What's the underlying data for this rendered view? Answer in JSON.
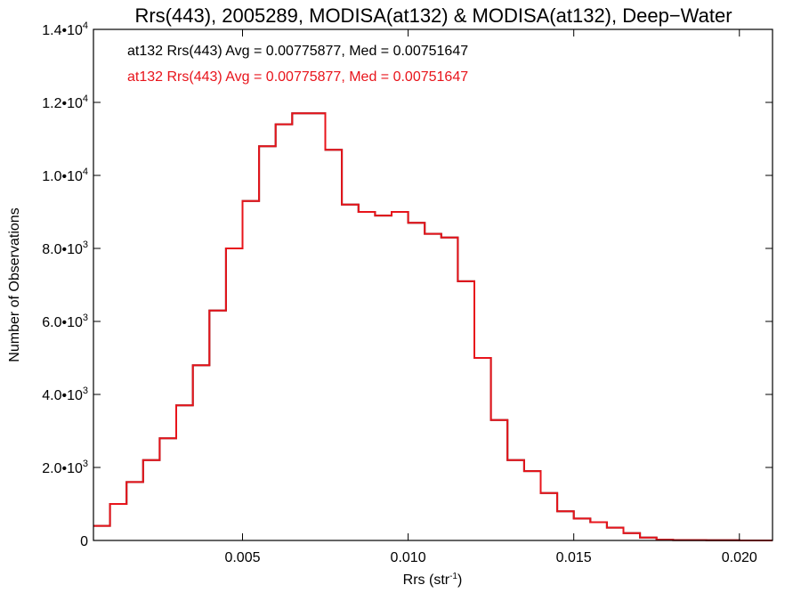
{
  "chart_data": {
    "type": "histogram",
    "title": "Rrs(443), 2005289, MODISA(at132) & MODISA(at132), Deep−Water",
    "xlabel": "Rrs (str",
    "xlabel_sup": "-1",
    "xlabel_suffix": ")",
    "ylabel": "Number of Observations",
    "xlim": [
      0.0005,
      0.021
    ],
    "ylim": [
      0,
      14000
    ],
    "x_ticks": [
      {
        "value": 0.005,
        "label": "0.005"
      },
      {
        "value": 0.01,
        "label": "0.010"
      },
      {
        "value": 0.015,
        "label": "0.015"
      },
      {
        "value": 0.02,
        "label": "0.020"
      }
    ],
    "y_ticks": [
      {
        "value": 0,
        "mantissa": "0",
        "exponent": ""
      },
      {
        "value": 2000,
        "mantissa": "2.0•10",
        "exponent": "3"
      },
      {
        "value": 4000,
        "mantissa": "4.0•10",
        "exponent": "3"
      },
      {
        "value": 6000,
        "mantissa": "6.0•10",
        "exponent": "3"
      },
      {
        "value": 8000,
        "mantissa": "8.0•10",
        "exponent": "3"
      },
      {
        "value": 10000,
        "mantissa": "1.0•10",
        "exponent": "4"
      },
      {
        "value": 12000,
        "mantissa": "1.2•10",
        "exponent": "4"
      },
      {
        "value": 14000,
        "mantissa": "1.4•10",
        "exponent": "4"
      }
    ],
    "annotations": [
      {
        "text": "at132 Rrs(443) Avg = 0.00775877, Med = 0.00751647",
        "color": "#000000"
      },
      {
        "text": "at132 Rrs(443) Avg = 0.00775877, Med = 0.00751647",
        "color": "#e8141b"
      }
    ],
    "series": [
      {
        "name": "at132",
        "color": "#000000",
        "x": [
          0.0005,
          0.001,
          0.0015,
          0.002,
          0.0025,
          0.003,
          0.0035,
          0.004,
          0.0045,
          0.005,
          0.0055,
          0.006,
          0.0065,
          0.007,
          0.0075,
          0.008,
          0.0085,
          0.009,
          0.0095,
          0.01,
          0.0105,
          0.011,
          0.0115,
          0.012,
          0.0125,
          0.013,
          0.0135,
          0.014,
          0.0145,
          0.015,
          0.0155,
          0.016,
          0.0165,
          0.017,
          0.0175,
          0.018,
          0.019,
          0.02,
          0.021
        ],
        "values": [
          400,
          1000,
          1600,
          2200,
          2800,
          3700,
          4800,
          6300,
          8000,
          9300,
          10800,
          11400,
          11700,
          11700,
          10700,
          9200,
          9000,
          8900,
          9000,
          8700,
          8400,
          8300,
          7100,
          5000,
          3300,
          2200,
          1900,
          1300,
          800,
          600,
          500,
          350,
          200,
          80,
          20,
          10,
          5,
          0,
          0
        ]
      },
      {
        "name": "at132",
        "color": "#e8141b",
        "x": [
          0.0005,
          0.001,
          0.0015,
          0.002,
          0.0025,
          0.003,
          0.0035,
          0.004,
          0.0045,
          0.005,
          0.0055,
          0.006,
          0.0065,
          0.007,
          0.0075,
          0.008,
          0.0085,
          0.009,
          0.0095,
          0.01,
          0.0105,
          0.011,
          0.0115,
          0.012,
          0.0125,
          0.013,
          0.0135,
          0.014,
          0.0145,
          0.015,
          0.0155,
          0.016,
          0.0165,
          0.017,
          0.0175,
          0.018,
          0.019,
          0.02,
          0.021
        ],
        "values": [
          400,
          1000,
          1600,
          2200,
          2800,
          3700,
          4800,
          6300,
          8000,
          9300,
          10800,
          11400,
          11700,
          11700,
          10700,
          9200,
          9000,
          8900,
          9000,
          8700,
          8400,
          8300,
          7100,
          5000,
          3300,
          2200,
          1900,
          1300,
          800,
          600,
          500,
          350,
          200,
          80,
          20,
          10,
          5,
          0,
          0
        ]
      }
    ],
    "grid": false,
    "legend": "none"
  }
}
